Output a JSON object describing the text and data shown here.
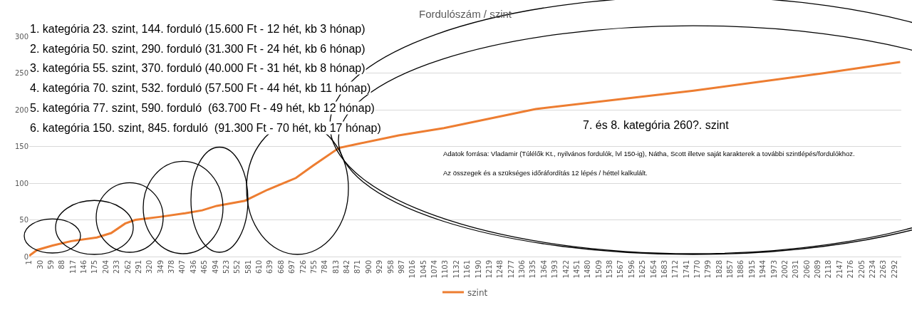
{
  "chart_data": {
    "type": "line",
    "title": "Fordulószám / szint",
    "x": [
      1,
      22,
      63,
      112,
      180,
      218,
      255,
      282,
      346,
      414,
      459,
      497,
      572,
      632,
      707,
      753,
      821,
      866,
      979,
      1099,
      1342,
      1760,
      2107,
      2307
    ],
    "series": [
      {
        "name": "szint",
        "color": "#ed7d31",
        "values": [
          1,
          9,
          15,
          21,
          26,
          32,
          45,
          50,
          54,
          59,
          63,
          69,
          76,
          91,
          107,
          124,
          148,
          153,
          165,
          175,
          201,
          226,
          250,
          265
        ]
      }
    ],
    "xlim": [
      1,
      2310
    ],
    "xticks": [
      1,
      30,
      59,
      88,
      117,
      146,
      175,
      204,
      233,
      262,
      291,
      320,
      349,
      378,
      407,
      436,
      465,
      494,
      523,
      552,
      581,
      610,
      639,
      668,
      697,
      726,
      755,
      784,
      813,
      842,
      871,
      900,
      929,
      958,
      987,
      1016,
      1045,
      1074,
      1103,
      1132,
      1161,
      1190,
      1219,
      1248,
      1277,
      1306,
      1335,
      1364,
      1393,
      1422,
      1451,
      1480,
      1509,
      1538,
      1567,
      1596,
      1625,
      1654,
      1683,
      1712,
      1741,
      1770,
      1799,
      1828,
      1857,
      1886,
      1915,
      1944,
      1973,
      2002,
      2031,
      2060,
      2089,
      2118,
      2147,
      2176,
      2205,
      2234,
      2263,
      2292
    ],
    "ylim": [
      0,
      300
    ],
    "yticks": [
      0,
      50,
      100,
      150,
      200,
      250,
      300
    ],
    "grid": "y",
    "legend": "bottom",
    "marker": "none",
    "line_style": "solid",
    "annotations": [
      "1. kategória 23. szint, 144. forduló (15.600 Ft - 12 hét, kb 3 hónap)",
      "2. kategória 50. szint, 290. forduló (31.300 Ft - 24 hét, kb 6 hónap)",
      "3. kategória 55. szint, 370. forduló (40.000 Ft - 31 hét, kb 8 hónap)",
      "4. kategória 70. szint, 532. forduló (57.500 Ft - 44 hét, kb 11 hónap)",
      "5. kategória 77. szint, 590. forduló  (63.700 Ft - 49 hét, kb 12 hónap)",
      "6. kategória 150. szint, 845. forduló  (91.300 Ft - 70 hét, kb 17 hónap)",
      "7. és 8. kategória 260?. szint",
      "Adatok forrása: Vladamir (Túlélők Kt., nyilvános fordulók, lvl 150-ig), Nátha, Scott illetve saját karakterek a további szintlépés/fordulókhoz.",
      "Az összegek és a szükséges időráfordítás 12 lépés / héttel kalkulált."
    ]
  }
}
